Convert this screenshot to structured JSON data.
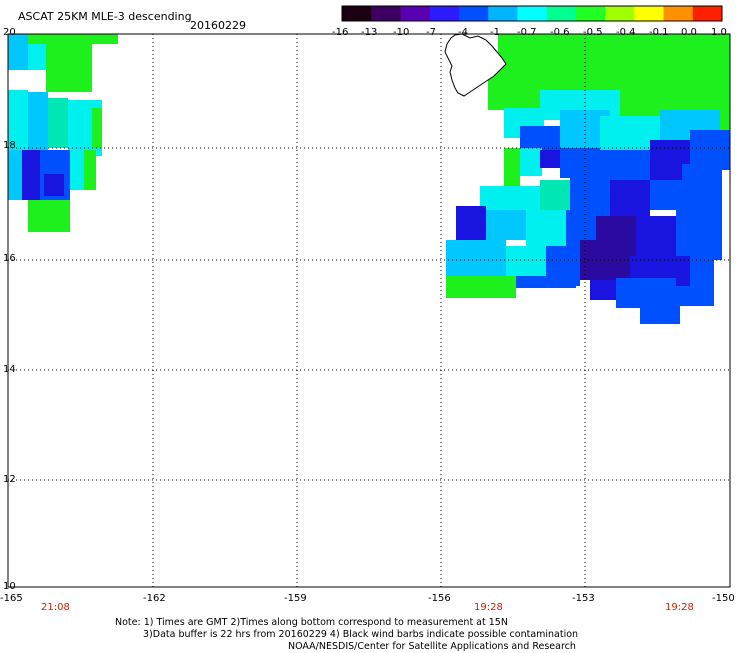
{
  "header": {
    "title": "ASCAT 25KM MLE-3 descending",
    "date": "20160229"
  },
  "colorbar": {
    "labels": [
      "-16",
      "-13",
      "-10",
      "-7",
      "-4",
      "-1",
      "-0.7",
      "-0.6",
      "-0.5",
      "-0.4",
      "-0.1",
      "0.0",
      "1.0"
    ],
    "colors": [
      "#1a0010",
      "#3b0060",
      "#5a00b0",
      "#2b1cff",
      "#0050ff",
      "#00b4ff",
      "#00ffff",
      "#00ff90",
      "#22ff22",
      "#a0ff00",
      "#ffff00",
      "#ff9000",
      "#ff2000"
    ]
  },
  "axes": {
    "lat_labels": [
      "20",
      "18",
      "16",
      "14",
      "12",
      "10"
    ],
    "lon_labels": [
      "-165",
      "-162",
      "-159",
      "-156",
      "-153",
      "-150"
    ]
  },
  "times": [
    "21:08",
    "19:28",
    "19:28"
  ],
  "notes": [
    "Note: 1) Times are GMT 2)Times along bottom correspond to measurement at 15N",
    "3)Data buffer is 22 hrs from 20160229 4) Black wind barbs indicate possible contamination",
    "NOAA/NESDIS/Center for Satellite Applications and Research"
  ]
}
